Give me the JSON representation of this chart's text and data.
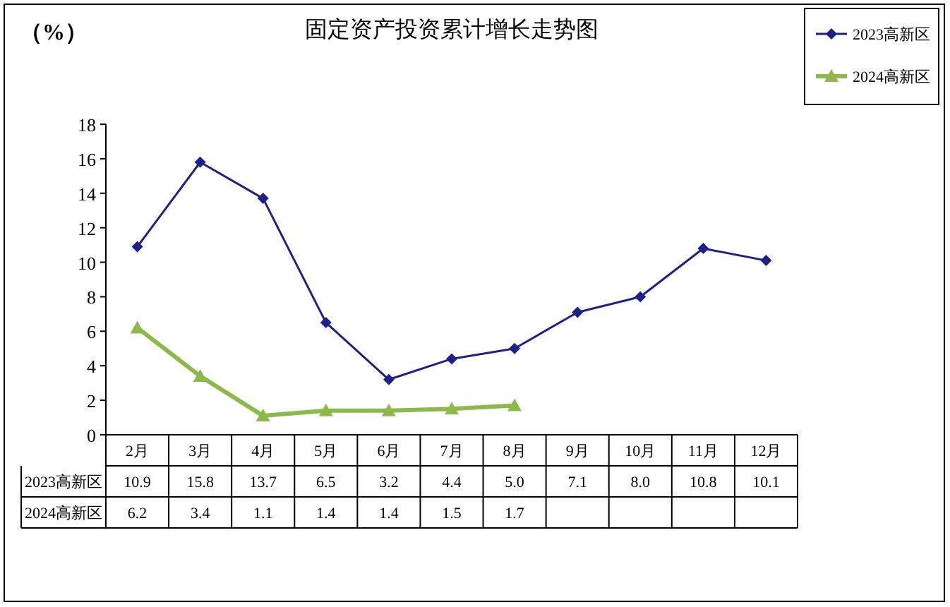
{
  "chart_data": {
    "type": "line",
    "title": "固定资产投资累计增长走势图",
    "ylabel": "（%）",
    "categories": [
      "2月",
      "3月",
      "4月",
      "5月",
      "6月",
      "7月",
      "8月",
      "9月",
      "10月",
      "11月",
      "12月"
    ],
    "series": [
      {
        "name": "2023高新区",
        "color": "#1f1f8c",
        "marker": "diamond",
        "values": [
          10.9,
          15.8,
          13.7,
          6.5,
          3.2,
          4.4,
          5.0,
          7.1,
          8.0,
          10.8,
          10.1
        ],
        "value_labels": [
          "10.9",
          "15.8",
          "13.7",
          "6.5",
          "3.2",
          "4.4",
          "5.0",
          "7.1",
          "8.0",
          "10.8",
          "10.1"
        ]
      },
      {
        "name": "2024高新区",
        "color": "#8db94a",
        "marker": "triangle",
        "values": [
          6.2,
          3.4,
          1.1,
          1.4,
          1.4,
          1.5,
          1.7,
          null,
          null,
          null,
          null
        ],
        "value_labels": [
          "6.2",
          "3.4",
          "1.1",
          "1.4",
          "1.4",
          "1.5",
          "1.7",
          null,
          null,
          null,
          null
        ]
      }
    ],
    "ylim": [
      0,
      18
    ],
    "yticks": [
      0,
      2,
      4,
      6,
      8,
      10,
      12,
      14,
      16,
      18
    ],
    "legend": "top right"
  }
}
